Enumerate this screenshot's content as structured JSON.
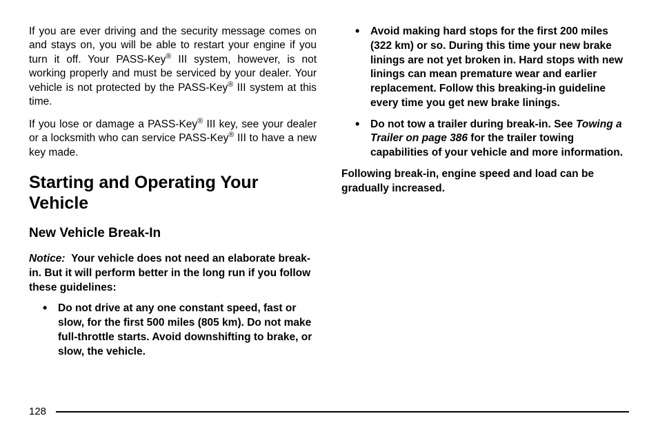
{
  "left": {
    "p1_a": "If you are ever driving and the security message comes on and stays on, you will be able to restart your engine if you turn it off. Your PASS-Key",
    "p1_b": " III system, however, is not working properly and must be serviced by your dealer. Your vehicle is not protected by the PASS-Key",
    "p1_c": " III system at this time.",
    "p2_a": "If you lose or damage a PASS-Key",
    "p2_b": " III key, see your dealer or a locksmith who can service PASS-Key",
    "p2_c": " III to have a new key made.",
    "h1": "Starting and Operating Your Vehicle",
    "h2": "New Vehicle Break-In",
    "notice_lead": "Notice:",
    "notice_body": "Your vehicle does not need an elaborate break-in. But it will perform better in the long run if you follow these guidelines:",
    "li1": "Do not drive at any one constant speed, fast or slow, for the first 500 miles (805 km). Do not make full-throttle starts. Avoid downshifting to brake, or slow, the vehicle."
  },
  "right": {
    "li2": "Avoid making hard stops for the first 200 miles (322 km) or so. During this time your new brake linings are not yet broken in. Hard stops with new linings can mean premature wear and earlier replacement. Follow this breaking-in guideline every time you get new brake linings.",
    "li3_a": "Do not tow a trailer during break-in. See ",
    "li3_ital": "Towing a Trailer on page 386",
    "li3_b": " for the trailer towing capabilities of your vehicle and more information.",
    "closing": "Following break-in, engine speed and load can be gradually increased."
  },
  "reg": "®",
  "page_number": "128"
}
